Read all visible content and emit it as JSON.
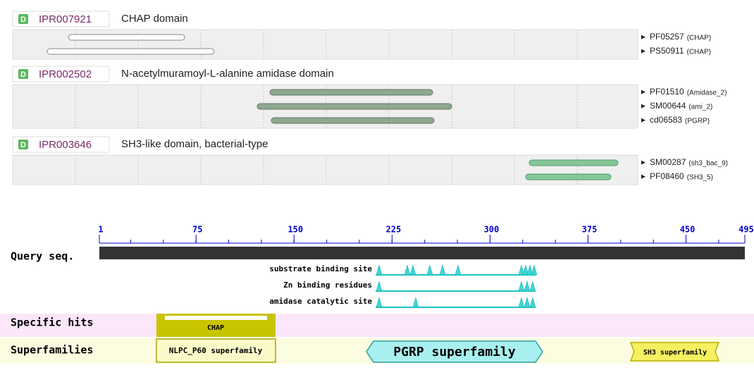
{
  "entries": [
    {
      "badge": "D",
      "accession": "IPR007921",
      "name": "CHAP domain",
      "signatures": [
        {
          "id": "PF05257",
          "label": "(CHAP)"
        },
        {
          "id": "PS50911",
          "label": "(CHAP)"
        }
      ]
    },
    {
      "badge": "D",
      "accession": "IPR002502",
      "name": "N-acetylmuramoyl-L-alanine amidase domain",
      "signatures": [
        {
          "id": "PF01510",
          "label": "(Amidase_2)"
        },
        {
          "id": "SM00644",
          "label": "(ami_2)"
        },
        {
          "id": "cd06583",
          "label": "(PGRP)"
        }
      ]
    },
    {
      "badge": "D",
      "accession": "IPR003646",
      "name": "SH3-like domain, bacterial-type",
      "signatures": [
        {
          "id": "SM00287",
          "label": "(sh3_bac_9)"
        },
        {
          "id": "PF08460",
          "label": "(SH3_5)"
        }
      ]
    }
  ],
  "cdd": {
    "ruler": [
      1,
      75,
      150,
      225,
      300,
      375,
      450,
      495
    ],
    "query_label": "Query seq.",
    "sites": [
      "substrate binding site",
      "Zn binding residues",
      "amidase catalytic site"
    ],
    "specific_hits": {
      "label": "Specific hits",
      "hits": [
        "CHAP"
      ]
    },
    "superfamilies": {
      "label": "Superfamilies",
      "hits": [
        "NLPC_P60 superfamily",
        "PGRP superfamily",
        "SH3 superfamily"
      ]
    }
  }
}
